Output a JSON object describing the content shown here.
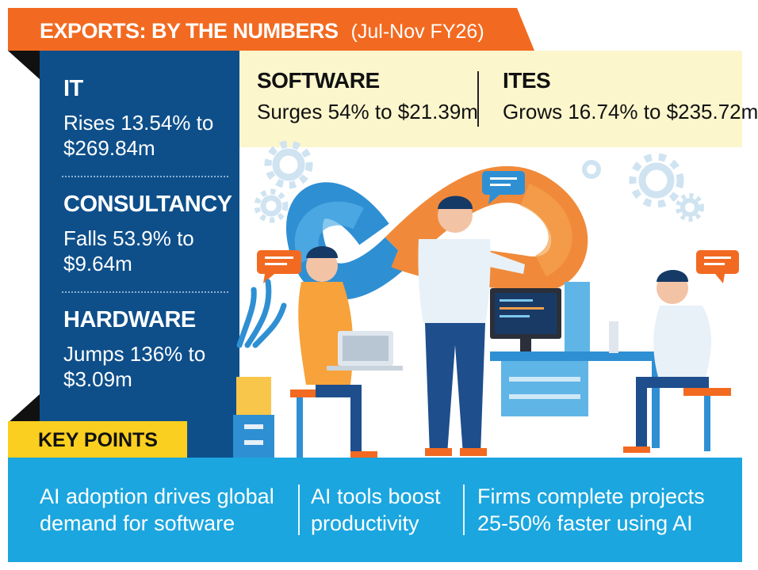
{
  "header": {
    "title": "EXPORTS: BY THE NUMBERS",
    "subtitle": "(Jul-Nov FY26)"
  },
  "left_stats": [
    {
      "label": "IT",
      "desc": "Rises 13.54% to $269.84m"
    },
    {
      "label": "CONSULTANCY",
      "desc": "Falls 53.9% to $9.64m"
    },
    {
      "label": "HARDWARE",
      "desc": "Jumps 136% to $3.09m"
    }
  ],
  "top_stats": [
    {
      "label": "SOFTWARE",
      "desc": "Surges 54% to $21.39m"
    },
    {
      "label": "ITES",
      "desc": "Grows 16.74% to $235.72m"
    }
  ],
  "key_points": {
    "title": "KEY POINTS",
    "items": [
      "AI adoption drives global demand for software",
      "AI tools boost productivity",
      "Firms complete projects 25-50% faster using AI"
    ]
  },
  "colors": {
    "orange": "#f26a21",
    "navy": "#0e4f8a",
    "cream": "#fbf6cc",
    "cyan": "#1ba6df",
    "yellow": "#fbcf1f"
  },
  "illustration": {
    "icons": [
      "infinity-loop-icon",
      "gear-icon",
      "speech-bubble-icon",
      "laptop-icon",
      "monitor-icon",
      "plant-icon"
    ]
  }
}
